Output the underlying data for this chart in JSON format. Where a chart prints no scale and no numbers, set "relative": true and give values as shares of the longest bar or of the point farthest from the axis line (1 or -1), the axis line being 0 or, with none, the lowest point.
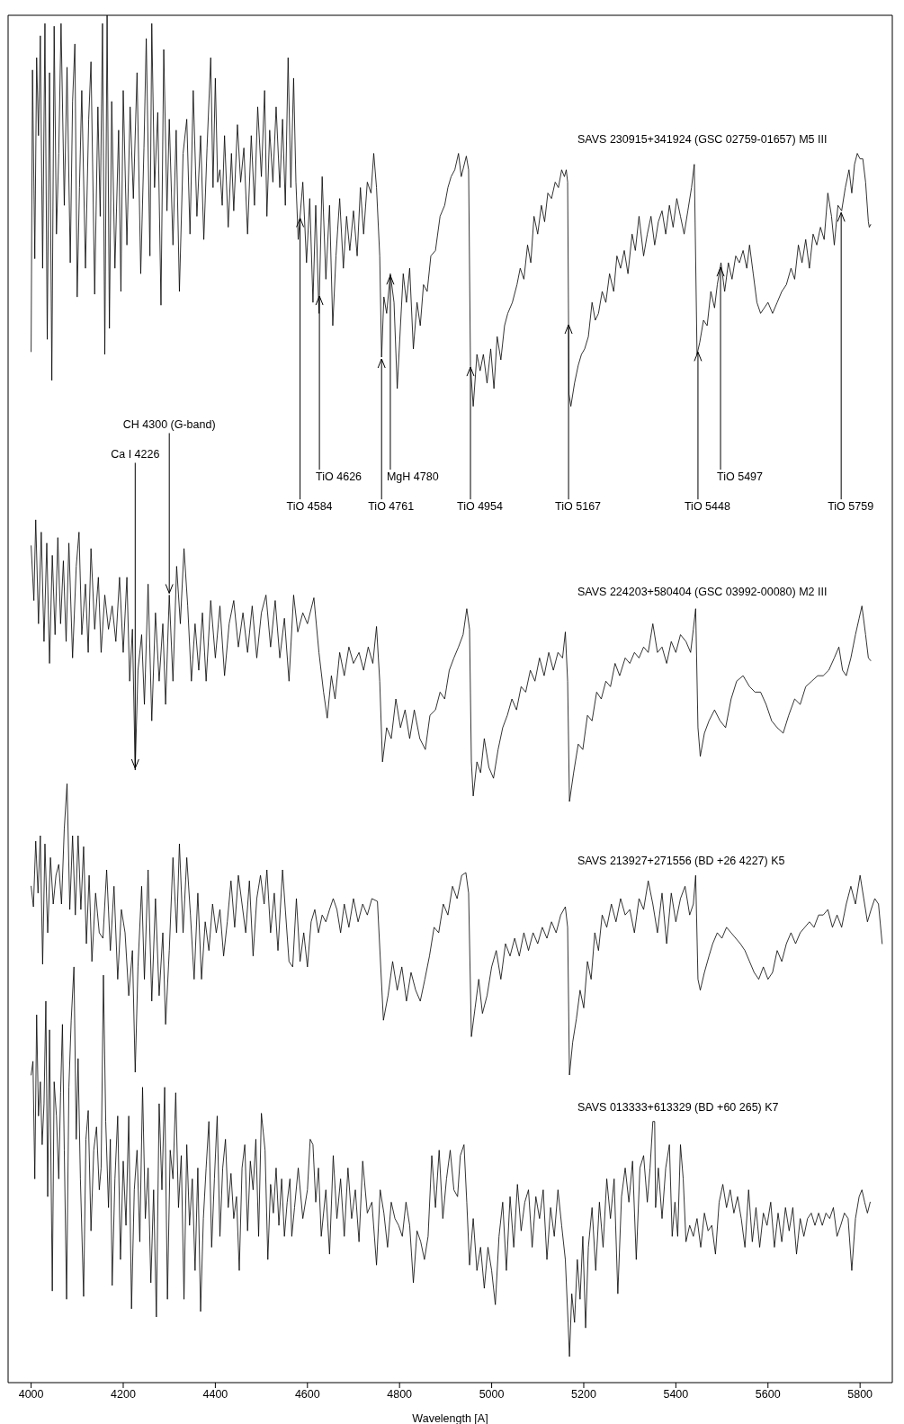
{
  "chart_data": {
    "type": "line",
    "relative": true,
    "xlabel": "Wavelength [A]",
    "xlim": [
      3950,
      5870
    ],
    "xticks": [
      4000,
      4200,
      4400,
      4600,
      4800,
      5000,
      5200,
      5400,
      5600,
      5800
    ],
    "marker": "none",
    "series": [
      {
        "name": "SAVS 230915+341924 (GSC 02759-01657)  M5 III",
        "color": "#000000",
        "x": [
          4000,
          4003,
          4008,
          4012,
          4016,
          4020,
          4025,
          4030,
          4035,
          4040,
          4045,
          4050,
          4055,
          4060,
          4065,
          4072,
          4078,
          4085,
          4090,
          4095,
          4100,
          4105,
          4110,
          4118,
          4125,
          4130,
          4138,
          4145,
          4150,
          4155,
          4160,
          4165,
          4170,
          4175,
          4182,
          4190,
          4195,
          4200,
          4208,
          4215,
          4222,
          4230,
          4238,
          4245,
          4250,
          4258,
          4262,
          4268,
          4275,
          4282,
          4288,
          4295,
          4300,
          4308,
          4315,
          4322,
          4330,
          4338,
          4345,
          4352,
          4360,
          4368,
          4375,
          4382,
          4390,
          4395,
          4400,
          4405,
          4410,
          4415,
          4420,
          4428,
          4435,
          4440,
          4448,
          4455,
          4462,
          4470,
          4478,
          4485,
          4492,
          4500,
          4507,
          4512,
          4518,
          4525,
          4532,
          4540,
          4546,
          4552,
          4558,
          4564,
          4570,
          4575,
          4580,
          4590,
          4598,
          4605,
          4612,
          4618,
          4625,
          4632,
          4640,
          4648,
          4655,
          4662,
          4670,
          4678,
          4685,
          4692,
          4700,
          4708,
          4715,
          4722,
          4730,
          4738,
          4744,
          4750,
          4757,
          4761,
          4766,
          4772,
          4780,
          4788,
          4795,
          4802,
          4808,
          4815,
          4822,
          4830,
          4838,
          4845,
          4852,
          4860,
          4868,
          4878,
          4888,
          4898,
          4905,
          4912,
          4920,
          4928,
          4934,
          4945,
          4950,
          4954,
          4960,
          4968,
          4975,
          4982,
          4990,
          4998,
          5005,
          5012,
          5020,
          5028,
          5035,
          5045,
          5055,
          5062,
          5070,
          5078,
          5085,
          5092,
          5100,
          5108,
          5115,
          5122,
          5130,
          5138,
          5145,
          5152,
          5158,
          5162,
          5165,
          5168,
          5172,
          5180,
          5188,
          5195,
          5202,
          5210,
          5218,
          5225,
          5232,
          5240,
          5248,
          5256,
          5265,
          5272,
          5280,
          5288,
          5296,
          5305,
          5312,
          5320,
          5330,
          5338,
          5346,
          5354,
          5362,
          5370,
          5378,
          5386,
          5394,
          5402,
          5410,
          5418,
          5426,
          5434,
          5440,
          5446,
          5452,
          5460,
          5468,
          5476,
          5484,
          5490,
          5498,
          5506,
          5514,
          5522,
          5530,
          5538,
          5546,
          5554,
          5560,
          5568,
          5576,
          5584,
          5592,
          5600,
          5610,
          5620,
          5630,
          5640,
          5650,
          5658,
          5666,
          5674,
          5682,
          5690,
          5698,
          5706,
          5714,
          5722,
          5730,
          5738,
          5744,
          5752,
          5760,
          5768,
          5776,
          5782,
          5788,
          5794,
          5800,
          5806,
          5812,
          5818,
          5820,
          5823
        ],
        "values": [
          0.754,
          0.96,
          0.822,
          0.969,
          0.912,
          0.985,
          0.815,
          0.994,
          0.763,
          0.958,
          0.733,
          0.992,
          0.84,
          0.899,
          0.994,
          0.861,
          0.962,
          0.819,
          0.937,
          0.979,
          0.794,
          0.874,
          0.945,
          0.815,
          0.924,
          0.966,
          0.796,
          0.933,
          0.853,
          0.994,
          0.752,
          1,
          0.771,
          0.937,
          0.815,
          0.916,
          0.798,
          0.945,
          0.832,
          0.933,
          0.866,
          0.958,
          0.811,
          0.903,
          0.983,
          0.824,
          0.994,
          0.874,
          0.929,
          0.788,
          0.975,
          0.857,
          0.924,
          0.832,
          0.916,
          0.798,
          0.899,
          0.924,
          0.84,
          0.945,
          0.853,
          0.912,
          0.836,
          0.903,
          0.969,
          0.874,
          0.954,
          0.878,
          0.887,
          0.861,
          0.912,
          0.845,
          0.899,
          0.857,
          0.92,
          0.878,
          0.903,
          0.84,
          0.912,
          0.861,
          0.933,
          0.882,
          0.945,
          0.853,
          0.916,
          0.878,
          0.933,
          0.874,
          0.924,
          0.861,
          0.969,
          0.874,
          0.954,
          0.878,
          0.836,
          0.878,
          0.819,
          0.866,
          0.79,
          0.861,
          0.782,
          0.882,
          0.807,
          0.861,
          0.773,
          0.824,
          0.866,
          0.815,
          0.853,
          0.828,
          0.857,
          0.824,
          0.874,
          0.84,
          0.878,
          0.87,
          0.899,
          0.874,
          0.824,
          0.75,
          0.794,
          0.782,
          0.811,
          0.79,
          0.727,
          0.773,
          0.811,
          0.79,
          0.815,
          0.756,
          0.79,
          0.773,
          0.803,
          0.798,
          0.824,
          0.828,
          0.853,
          0.861,
          0.874,
          0.882,
          0.887,
          0.899,
          0.882,
          0.897,
          0.887,
          0.744,
          0.714,
          0.752,
          0.74,
          0.752,
          0.731,
          0.756,
          0.727,
          0.765,
          0.748,
          0.773,
          0.782,
          0.79,
          0.803,
          0.815,
          0.807,
          0.832,
          0.819,
          0.853,
          0.84,
          0.861,
          0.849,
          0.87,
          0.866,
          0.878,
          0.874,
          0.887,
          0.882,
          0.887,
          0.878,
          0.723,
          0.714,
          0.731,
          0.744,
          0.752,
          0.756,
          0.765,
          0.79,
          0.777,
          0.782,
          0.798,
          0.79,
          0.811,
          0.798,
          0.824,
          0.815,
          0.828,
          0.811,
          0.84,
          0.828,
          0.853,
          0.824,
          0.84,
          0.853,
          0.832,
          0.849,
          0.857,
          0.84,
          0.861,
          0.845,
          0.866,
          0.853,
          0.84,
          0.857,
          0.874,
          0.891,
          0.752,
          0.761,
          0.777,
          0.773,
          0.798,
          0.786,
          0.803,
          0.819,
          0.798,
          0.819,
          0.807,
          0.824,
          0.819,
          0.828,
          0.815,
          0.832,
          0.811,
          0.79,
          0.782,
          0.786,
          0.79,
          0.782,
          0.79,
          0.798,
          0.803,
          0.815,
          0.807,
          0.832,
          0.819,
          0.836,
          0.815,
          0.84,
          0.832,
          0.845,
          0.836,
          0.87,
          0.853,
          0.832,
          0.861,
          0.857,
          0.874,
          0.887,
          0.87,
          0.891,
          0.899,
          0.895,
          0.895,
          0.878,
          0.849,
          0.845,
          0.847
        ]
      },
      {
        "name": "SAVS 224203+580404 (GSC 03992-00080)  M2 III",
        "color": "#000000",
        "x": [
          4000,
          4006,
          4010,
          4016,
          4022,
          4028,
          4034,
          4040,
          4046,
          4052,
          4058,
          4064,
          4070,
          4076,
          4082,
          4090,
          4098,
          4104,
          4110,
          4118,
          4124,
          4130,
          4138,
          4146,
          4152,
          4160,
          4168,
          4176,
          4184,
          4192,
          4200,
          4208,
          4214,
          4220,
          4226,
          4232,
          4240,
          4246,
          4254,
          4262,
          4270,
          4278,
          4286,
          4292,
          4300,
          4308,
          4316,
          4324,
          4332,
          4340,
          4348,
          4356,
          4364,
          4372,
          4380,
          4390,
          4400,
          4410,
          4420,
          4430,
          4440,
          4450,
          4460,
          4470,
          4480,
          4490,
          4500,
          4510,
          4520,
          4530,
          4540,
          4550,
          4560,
          4570,
          4579,
          4590,
          4600,
          4614,
          4625,
          4635,
          4643,
          4652,
          4660,
          4670,
          4680,
          4690,
          4700,
          4712,
          4722,
          4732,
          4742,
          4750,
          4757,
          4763,
          4772,
          4782,
          4792,
          4802,
          4812,
          4822,
          4832,
          4844,
          4856,
          4866,
          4878,
          4888,
          4898,
          4908,
          4918,
          4928,
          4938,
          4946,
          4952,
          4956,
          4960,
          4968,
          4976,
          4984,
          4994,
          5004,
          5014,
          5024,
          5034,
          5044,
          5054,
          5064,
          5074,
          5084,
          5094,
          5104,
          5114,
          5124,
          5134,
          5144,
          5154,
          5160,
          5165,
          5169,
          5178,
          5188,
          5198,
          5208,
          5218,
          5228,
          5238,
          5248,
          5258,
          5268,
          5278,
          5290,
          5300,
          5310,
          5320,
          5330,
          5340,
          5350,
          5360,
          5370,
          5380,
          5390,
          5400,
          5410,
          5422,
          5432,
          5438,
          5443,
          5448,
          5453,
          5462,
          5472,
          5484,
          5496,
          5508,
          5520,
          5532,
          5546,
          5560,
          5572,
          5584,
          5596,
          5608,
          5620,
          5633,
          5645,
          5658,
          5670,
          5682,
          5695,
          5708,
          5720,
          5732,
          5744,
          5754,
          5762,
          5770,
          5780,
          5790,
          5798,
          5804,
          5812,
          5818,
          5823
        ],
        "values": [
          0.612,
          0.572,
          0.631,
          0.555,
          0.622,
          0.542,
          0.614,
          0.526,
          0.605,
          0.547,
          0.618,
          0.555,
          0.601,
          0.542,
          0.614,
          0.53,
          0.597,
          0.622,
          0.547,
          0.584,
          0.534,
          0.61,
          0.551,
          0.589,
          0.534,
          0.576,
          0.551,
          0.568,
          0.542,
          0.589,
          0.534,
          0.589,
          0.513,
          0.551,
          0.448,
          0.521,
          0.547,
          0.496,
          0.584,
          0.484,
          0.563,
          0.513,
          0.555,
          0.496,
          0.576,
          0.513,
          0.597,
          0.555,
          0.61,
          0.568,
          0.513,
          0.555,
          0.521,
          0.563,
          0.513,
          0.572,
          0.53,
          0.568,
          0.517,
          0.555,
          0.572,
          0.538,
          0.563,
          0.534,
          0.568,
          0.53,
          0.563,
          0.576,
          0.538,
          0.572,
          0.53,
          0.559,
          0.513,
          0.576,
          0.549,
          0.563,
          0.555,
          0.574,
          0.534,
          0.505,
          0.486,
          0.517,
          0.5,
          0.534,
          0.517,
          0.538,
          0.526,
          0.534,
          0.521,
          0.538,
          0.526,
          0.553,
          0.513,
          0.454,
          0.479,
          0.471,
          0.5,
          0.479,
          0.492,
          0.471,
          0.492,
          0.471,
          0.463,
          0.488,
          0.492,
          0.505,
          0.5,
          0.521,
          0.53,
          0.538,
          0.547,
          0.566,
          0.551,
          0.454,
          0.429,
          0.454,
          0.446,
          0.471,
          0.45,
          0.442,
          0.463,
          0.479,
          0.488,
          0.5,
          0.492,
          0.509,
          0.505,
          0.521,
          0.513,
          0.53,
          0.517,
          0.534,
          0.521,
          0.534,
          0.53,
          0.549,
          0.513,
          0.425,
          0.446,
          0.467,
          0.463,
          0.488,
          0.484,
          0.505,
          0.5,
          0.513,
          0.509,
          0.526,
          0.517,
          0.53,
          0.526,
          0.534,
          0.53,
          0.538,
          0.534,
          0.555,
          0.534,
          0.538,
          0.526,
          0.542,
          0.534,
          0.547,
          0.542,
          0.534,
          0.551,
          0.566,
          0.479,
          0.458,
          0.475,
          0.484,
          0.492,
          0.484,
          0.479,
          0.5,
          0.513,
          0.517,
          0.509,
          0.505,
          0.505,
          0.496,
          0.484,
          0.479,
          0.475,
          0.488,
          0.5,
          0.496,
          0.509,
          0.513,
          0.517,
          0.517,
          0.521,
          0.53,
          0.538,
          0.521,
          0.517,
          0.53,
          0.547,
          0.559,
          0.568,
          0.547,
          0.53,
          0.528
        ]
      },
      {
        "name": "SAVS 213927+271556 (BD +26 4227)   K5",
        "color": "#000000",
        "x": [
          4000,
          4005,
          4010,
          4015,
          4020,
          4025,
          4030,
          4036,
          4042,
          4048,
          4054,
          4060,
          4066,
          4072,
          4078,
          4084,
          4090,
          4096,
          4102,
          4108,
          4114,
          4120,
          4126,
          4132,
          4140,
          4148,
          4156,
          4164,
          4172,
          4180,
          4188,
          4196,
          4204,
          4212,
          4220,
          4226,
          4232,
          4240,
          4246,
          4254,
          4262,
          4270,
          4278,
          4286,
          4292,
          4300,
          4308,
          4316,
          4322,
          4330,
          4338,
          4346,
          4354,
          4362,
          4370,
          4378,
          4386,
          4394,
          4402,
          4410,
          4418,
          4426,
          4434,
          4442,
          4450,
          4458,
          4466,
          4474,
          4482,
          4490,
          4498,
          4506,
          4512,
          4520,
          4528,
          4536,
          4546,
          4552,
          4560,
          4568,
          4576,
          4584,
          4592,
          4600,
          4608,
          4616,
          4624,
          4632,
          4640,
          4648,
          4656,
          4664,
          4672,
          4680,
          4690,
          4700,
          4710,
          4720,
          4730,
          4740,
          4752,
          4765,
          4775,
          4785,
          4795,
          4805,
          4815,
          4825,
          4835,
          4845,
          4855,
          4865,
          4875,
          4885,
          4895,
          4905,
          4915,
          4925,
          4935,
          4944,
          4950,
          4956,
          4964,
          4972,
          4980,
          4990,
          5000,
          5010,
          5020,
          5030,
          5040,
          5050,
          5060,
          5070,
          5080,
          5090,
          5100,
          5110,
          5120,
          5130,
          5140,
          5150,
          5160,
          5165,
          5169,
          5176,
          5184,
          5192,
          5200,
          5208,
          5216,
          5224,
          5232,
          5240,
          5250,
          5260,
          5270,
          5280,
          5290,
          5300,
          5310,
          5320,
          5330,
          5340,
          5350,
          5360,
          5370,
          5380,
          5390,
          5400,
          5410,
          5420,
          5430,
          5438,
          5443,
          5448,
          5453,
          5462,
          5472,
          5480,
          5490,
          5500,
          5510,
          5520,
          5530,
          5540,
          5550,
          5560,
          5570,
          5580,
          5590,
          5600,
          5610,
          5620,
          5630,
          5640,
          5650,
          5660,
          5670,
          5680,
          5690,
          5700,
          5710,
          5720,
          5730,
          5740,
          5750,
          5760,
          5770,
          5780,
          5790,
          5800,
          5808,
          5816,
          5824,
          5832,
          5840,
          5848
        ],
        "values": [
          0.363,
          0.348,
          0.396,
          0.358,
          0.4,
          0.306,
          0.394,
          0.329,
          0.384,
          0.35,
          0.371,
          0.379,
          0.35,
          0.405,
          0.438,
          0.346,
          0.4,
          0.342,
          0.4,
          0.346,
          0.392,
          0.321,
          0.371,
          0.308,
          0.358,
          0.329,
          0.325,
          0.375,
          0.316,
          0.363,
          0.295,
          0.346,
          0.329,
          0.283,
          0.316,
          0.227,
          0.304,
          0.363,
          0.295,
          0.375,
          0.279,
          0.354,
          0.283,
          0.329,
          0.262,
          0.316,
          0.384,
          0.329,
          0.394,
          0.329,
          0.384,
          0.342,
          0.295,
          0.358,
          0.295,
          0.337,
          0.316,
          0.35,
          0.329,
          0.346,
          0.312,
          0.337,
          0.367,
          0.333,
          0.371,
          0.35,
          0.329,
          0.367,
          0.312,
          0.354,
          0.371,
          0.35,
          0.375,
          0.329,
          0.358,
          0.316,
          0.375,
          0.346,
          0.308,
          0.304,
          0.354,
          0.308,
          0.329,
          0.304,
          0.337,
          0.346,
          0.329,
          0.342,
          0.337,
          0.346,
          0.354,
          0.346,
          0.329,
          0.35,
          0.333,
          0.354,
          0.337,
          0.35,
          0.342,
          0.354,
          0.352,
          0.265,
          0.283,
          0.308,
          0.287,
          0.304,
          0.279,
          0.3,
          0.287,
          0.279,
          0.295,
          0.312,
          0.333,
          0.329,
          0.35,
          0.342,
          0.363,
          0.354,
          0.371,
          0.373,
          0.358,
          0.253,
          0.274,
          0.295,
          0.27,
          0.283,
          0.304,
          0.316,
          0.295,
          0.321,
          0.312,
          0.325,
          0.312,
          0.329,
          0.316,
          0.329,
          0.321,
          0.333,
          0.325,
          0.337,
          0.329,
          0.342,
          0.348,
          0.333,
          0.225,
          0.249,
          0.266,
          0.287,
          0.274,
          0.308,
          0.295,
          0.329,
          0.316,
          0.342,
          0.333,
          0.35,
          0.337,
          0.354,
          0.342,
          0.346,
          0.329,
          0.354,
          0.346,
          0.367,
          0.35,
          0.329,
          0.358,
          0.321,
          0.358,
          0.337,
          0.354,
          0.363,
          0.342,
          0.35,
          0.371,
          0.295,
          0.287,
          0.3,
          0.312,
          0.321,
          0.329,
          0.325,
          0.333,
          0.329,
          0.325,
          0.321,
          0.316,
          0.308,
          0.3,
          0.295,
          0.304,
          0.295,
          0.3,
          0.316,
          0.308,
          0.321,
          0.329,
          0.321,
          0.329,
          0.333,
          0.337,
          0.333,
          0.342,
          0.342,
          0.346,
          0.333,
          0.342,
          0.333,
          0.35,
          0.363,
          0.35,
          0.371,
          0.354,
          0.337,
          0.346,
          0.354,
          0.35,
          0.321
        ]
      },
      {
        "name": "SAVS 013333+613329 (BD +60 265)   K7",
        "color": "#000000",
        "x": [
          4000,
          4004,
          4008,
          4012,
          4016,
          4020,
          4024,
          4028,
          4032,
          4036,
          4040,
          4046,
          4050,
          4055,
          4060,
          4064,
          4068,
          4072,
          4077,
          4082,
          4087,
          4093,
          4098,
          4102,
          4107,
          4114,
          4119,
          4124,
          4130,
          4136,
          4142,
          4148,
          4152,
          4157,
          4162,
          4168,
          4172,
          4176,
          4182,
          4188,
          4194,
          4200,
          4206,
          4212,
          4218,
          4224,
          4230,
          4236,
          4242,
          4248,
          4254,
          4260,
          4266,
          4272,
          4278,
          4284,
          4290,
          4296,
          4302,
          4308,
          4314,
          4320,
          4326,
          4332,
          4338,
          4344,
          4350,
          4356,
          4362,
          4368,
          4374,
          4380,
          4386,
          4392,
          4398,
          4404,
          4410,
          4416,
          4422,
          4428,
          4434,
          4440,
          4446,
          4452,
          4458,
          4464,
          4470,
          4476,
          4482,
          4488,
          4494,
          4500,
          4508,
          4514,
          4520,
          4526,
          4532,
          4538,
          4544,
          4550,
          4556,
          4562,
          4566,
          4572,
          4580,
          4590,
          4600,
          4606,
          4612,
          4618,
          4624,
          4630,
          4640,
          4648,
          4656,
          4664,
          4672,
          4680,
          4688,
          4696,
          4704,
          4712,
          4720,
          4730,
          4740,
          4750,
          4758,
          4766,
          4774,
          4782,
          4790,
          4798,
          4806,
          4814,
          4822,
          4830,
          4838,
          4846,
          4854,
          4862,
          4870,
          4878,
          4886,
          4894,
          4902,
          4910,
          4918,
          4926,
          4932,
          4940,
          4946,
          4952,
          4960,
          4968,
          4976,
          4984,
          4992,
          5000,
          5008,
          5016,
          5024,
          5032,
          5040,
          5048,
          5056,
          5064,
          5072,
          5080,
          5088,
          5096,
          5104,
          5112,
          5120,
          5128,
          5136,
          5144,
          5152,
          5160,
          5166,
          5169,
          5174,
          5180,
          5186,
          5192,
          5198,
          5204,
          5210,
          5218,
          5226,
          5234,
          5242,
          5250,
          5258,
          5266,
          5274,
          5282,
          5290,
          5298,
          5306,
          5314,
          5322,
          5330,
          5338,
          5344,
          5350,
          5354,
          5356,
          5362,
          5370,
          5378,
          5386,
          5392,
          5398,
          5404,
          5410,
          5416,
          5422,
          5430,
          5438,
          5446,
          5454,
          5462,
          5470,
          5478,
          5486,
          5494,
          5502,
          5510,
          5518,
          5526,
          5534,
          5542,
          5550,
          5558,
          5566,
          5574,
          5582,
          5590,
          5598,
          5606,
          5614,
          5622,
          5630,
          5638,
          5646,
          5654,
          5662,
          5670,
          5678,
          5686,
          5694,
          5702,
          5710,
          5718,
          5726,
          5734,
          5742,
          5750,
          5758,
          5766,
          5774,
          5782,
          5790,
          5798,
          5804,
          5810,
          5816,
          5822
        ],
        "values": [
          0.225,
          0.235,
          0.149,
          0.269,
          0.195,
          0.22,
          0.174,
          0.204,
          0.279,
          0.136,
          0.258,
          0.067,
          0.22,
          0.195,
          0.149,
          0.212,
          0.262,
          0.17,
          0.061,
          0.216,
          0.265,
          0.304,
          0.178,
          0.237,
          0.149,
          0.063,
          0.178,
          0.199,
          0.111,
          0.17,
          0.187,
          0.141,
          0.157,
          0.298,
          0.191,
          0.128,
          0.178,
          0.071,
          0.149,
          0.195,
          0.09,
          0.162,
          0.115,
          0.195,
          0.054,
          0.141,
          0.17,
          0.103,
          0.216,
          0.12,
          0.157,
          0.073,
          0.141,
          0.048,
          0.204,
          0.141,
          0.216,
          0.061,
          0.17,
          0.149,
          0.212,
          0.128,
          0.166,
          0.061,
          0.174,
          0.115,
          0.149,
          0.082,
          0.157,
          0.052,
          0.12,
          0.157,
          0.191,
          0.099,
          0.149,
          0.195,
          0.107,
          0.157,
          0.178,
          0.128,
          0.153,
          0.12,
          0.136,
          0.082,
          0.157,
          0.174,
          0.111,
          0.162,
          0.141,
          0.178,
          0.107,
          0.197,
          0.17,
          0.09,
          0.145,
          0.124,
          0.157,
          0.115,
          0.149,
          0.107,
          0.132,
          0.149,
          0.107,
          0.128,
          0.157,
          0.12,
          0.141,
          0.178,
          0.174,
          0.132,
          0.157,
          0.107,
          0.141,
          0.094,
          0.166,
          0.12,
          0.149,
          0.107,
          0.157,
          0.12,
          0.141,
          0.103,
          0.162,
          0.124,
          0.132,
          0.086,
          0.141,
          0.124,
          0.099,
          0.132,
          0.12,
          0.115,
          0.107,
          0.132,
          0.115,
          0.073,
          0.111,
          0.103,
          0.09,
          0.107,
          0.166,
          0.128,
          0.17,
          0.12,
          0.149,
          0.17,
          0.141,
          0.136,
          0.166,
          0.174,
          0.132,
          0.086,
          0.12,
          0.082,
          0.099,
          0.069,
          0.099,
          0.082,
          0.057,
          0.107,
          0.132,
          0.082,
          0.136,
          0.099,
          0.145,
          0.111,
          0.132,
          0.141,
          0.099,
          0.136,
          0.12,
          0.141,
          0.09,
          0.128,
          0.107,
          0.141,
          0.115,
          0.09,
          0.044,
          0.019,
          0.065,
          0.044,
          0.09,
          0.061,
          0.107,
          0.04,
          0.099,
          0.128,
          0.082,
          0.132,
          0.099,
          0.149,
          0.12,
          0.149,
          0.065,
          0.136,
          0.157,
          0.132,
          0.162,
          0.09,
          0.157,
          0.166,
          0.132,
          0.157,
          0.191,
          0.191,
          0.128,
          0.157,
          0.12,
          0.157,
          0.174,
          0.107,
          0.132,
          0.107,
          0.174,
          0.149,
          0.103,
          0.115,
          0.107,
          0.12,
          0.099,
          0.124,
          0.111,
          0.115,
          0.094,
          0.132,
          0.145,
          0.128,
          0.141,
          0.124,
          0.136,
          0.12,
          0.099,
          0.141,
          0.103,
          0.128,
          0.099,
          0.124,
          0.115,
          0.132,
          0.099,
          0.124,
          0.103,
          0.128,
          0.111,
          0.128,
          0.094,
          0.12,
          0.107,
          0.12,
          0.124,
          0.115,
          0.124,
          0.115,
          0.124,
          0.12,
          0.128,
          0.107,
          0.115,
          0.124,
          0.12,
          0.082,
          0.12,
          0.136,
          0.141,
          0.132,
          0.124,
          0.132
        ]
      }
    ],
    "annotations": [
      {
        "text": "Ca I 4226",
        "x": 4226,
        "y": 0.448
      },
      {
        "text": "CH 4300 (G-band)",
        "x": 4300,
        "y": 0.576
      },
      {
        "text": "TiO 4584",
        "x": 4584,
        "y": 0.853
      },
      {
        "text": "TiO 4626",
        "x": 4626,
        "y": 0.796
      },
      {
        "text": "TiO 4761",
        "x": 4761,
        "y": 0.75
      },
      {
        "text": "MgH 4780",
        "x": 4780,
        "y": 0.811
      },
      {
        "text": "TiO 4954",
        "x": 4954,
        "y": 0.744
      },
      {
        "text": "TiO 5167",
        "x": 5167,
        "y": 0.775
      },
      {
        "text": "TiO 5448",
        "x": 5448,
        "y": 0.755
      },
      {
        "text": "TiO 5497",
        "x": 5497,
        "y": 0.817
      },
      {
        "text": "TiO 5759",
        "x": 5759,
        "y": 0.857
      }
    ]
  }
}
